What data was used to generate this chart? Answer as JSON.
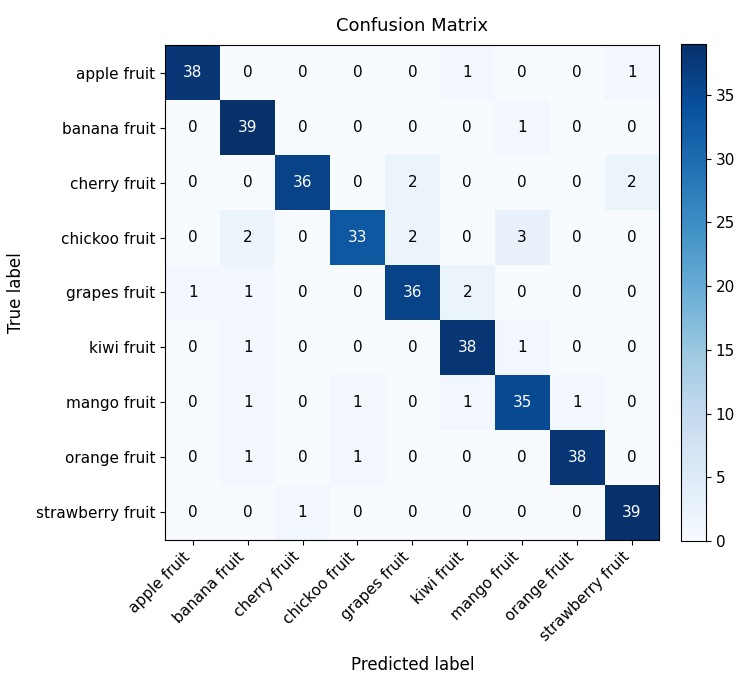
{
  "title": "Confusion Matrix",
  "xlabel": "Predicted label",
  "ylabel": "True label",
  "classes": [
    "apple fruit",
    "banana fruit",
    "cherry fruit",
    "chickoo fruit",
    "grapes fruit",
    "kiwi fruit",
    "mango fruit",
    "orange fruit",
    "strawberry fruit"
  ],
  "matrix": [
    [
      38,
      0,
      0,
      0,
      0,
      1,
      0,
      0,
      1
    ],
    [
      0,
      39,
      0,
      0,
      0,
      0,
      1,
      0,
      0
    ],
    [
      0,
      0,
      36,
      0,
      2,
      0,
      0,
      0,
      2
    ],
    [
      0,
      2,
      0,
      33,
      2,
      0,
      3,
      0,
      0
    ],
    [
      1,
      1,
      0,
      0,
      36,
      2,
      0,
      0,
      0
    ],
    [
      0,
      1,
      0,
      0,
      0,
      38,
      1,
      0,
      0
    ],
    [
      0,
      1,
      0,
      1,
      0,
      1,
      35,
      1,
      0
    ],
    [
      0,
      1,
      0,
      1,
      0,
      0,
      0,
      38,
      0
    ],
    [
      0,
      0,
      1,
      0,
      0,
      0,
      0,
      0,
      39
    ]
  ],
  "cmap": "Blues",
  "vmin": 0,
  "vmax": 39,
  "colorbar_ticks": [
    0,
    5,
    10,
    15,
    20,
    25,
    30,
    35
  ],
  "text_color_threshold": 20,
  "figsize": [
    7.42,
    6.91
  ],
  "dpi": 100,
  "title_fontsize": 13,
  "axis_label_fontsize": 12,
  "tick_fontsize": 11,
  "cell_text_fontsize": 11
}
